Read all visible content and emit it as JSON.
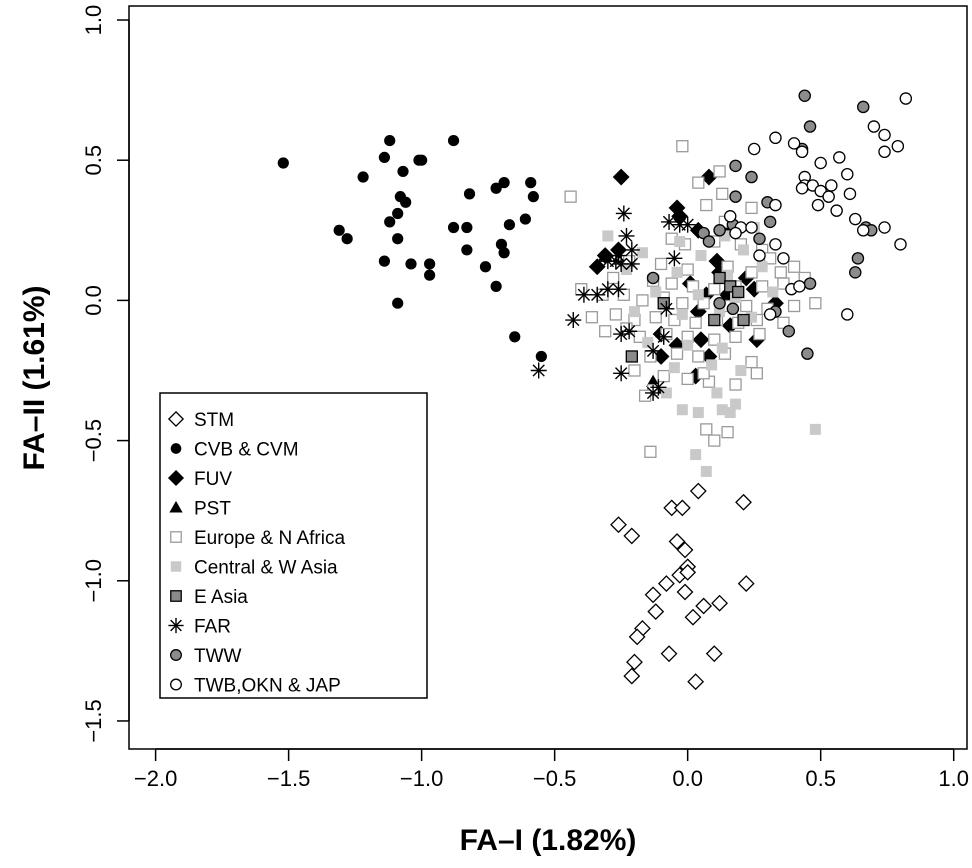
{
  "chart_data": {
    "type": "scatter",
    "xlabel": "FA–I (1.82%)",
    "ylabel": "FA–II (1.61%)",
    "xlim": [
      -2.1,
      1.05
    ],
    "ylim": [
      -1.6,
      1.05
    ],
    "xticks": [
      -2.0,
      -1.5,
      -1.0,
      -0.5,
      0.0,
      0.5,
      1.0
    ],
    "xtick_labels": [
      "−2.0",
      "−1.5",
      "−1.0",
      "−0.5",
      "0.0",
      "0.5",
      "1.0"
    ],
    "yticks": [
      -1.5,
      -1.0,
      -0.5,
      0.0,
      0.5,
      1.0
    ],
    "ytick_labels": [
      "−1.5",
      "−1.0",
      "−0.5",
      "0.0",
      "0.5",
      "1.0"
    ],
    "grid": false,
    "legend_position": "bottom-left",
    "series": [
      {
        "name": "STM",
        "marker": "diamond-open",
        "points": [
          [
            -0.26,
            -0.8
          ],
          [
            -0.21,
            -0.84
          ],
          [
            -0.06,
            -0.74
          ],
          [
            0.04,
            -0.68
          ],
          [
            -0.02,
            -0.74
          ],
          [
            0.21,
            -0.72
          ],
          [
            -0.04,
            -0.86
          ],
          [
            -0.01,
            -0.89
          ],
          [
            0.0,
            -0.95
          ],
          [
            -0.03,
            -0.98
          ],
          [
            0.0,
            -0.97
          ],
          [
            -0.08,
            -1.01
          ],
          [
            0.06,
            -1.09
          ],
          [
            0.12,
            -1.08
          ],
          [
            0.22,
            -1.01
          ],
          [
            -0.13,
            -1.05
          ],
          [
            -0.12,
            -1.11
          ],
          [
            -0.01,
            -1.04
          ],
          [
            0.02,
            -1.13
          ],
          [
            -0.17,
            -1.17
          ],
          [
            -0.19,
            -1.2
          ],
          [
            -0.07,
            -1.26
          ],
          [
            0.1,
            -1.26
          ],
          [
            -0.2,
            -1.29
          ],
          [
            -0.21,
            -1.34
          ],
          [
            0.03,
            -1.36
          ]
        ]
      },
      {
        "name": "CVB & CVM",
        "marker": "circle-filled",
        "points": [
          [
            -1.52,
            0.49
          ],
          [
            -1.12,
            0.57
          ],
          [
            -1.14,
            0.51
          ],
          [
            -1.01,
            0.5
          ],
          [
            -1.0,
            0.5
          ],
          [
            -0.88,
            0.57
          ],
          [
            -1.07,
            0.46
          ],
          [
            -1.22,
            0.44
          ],
          [
            -1.08,
            0.37
          ],
          [
            -1.06,
            0.35
          ],
          [
            -1.09,
            0.31
          ],
          [
            -1.12,
            0.28
          ],
          [
            -0.82,
            0.38
          ],
          [
            -0.72,
            0.4
          ],
          [
            -0.69,
            0.42
          ],
          [
            -0.59,
            0.42
          ],
          [
            -0.58,
            0.37
          ],
          [
            -0.61,
            0.29
          ],
          [
            -0.67,
            0.27
          ],
          [
            -1.31,
            0.25
          ],
          [
            -1.28,
            0.22
          ],
          [
            -1.09,
            0.22
          ],
          [
            -0.88,
            0.26
          ],
          [
            -0.83,
            0.26
          ],
          [
            -0.7,
            0.2
          ],
          [
            -0.69,
            0.17
          ],
          [
            -0.83,
            0.18
          ],
          [
            -1.14,
            0.14
          ],
          [
            -1.04,
            0.13
          ],
          [
            -0.97,
            0.13
          ],
          [
            -0.76,
            0.12
          ],
          [
            -0.97,
            0.09
          ],
          [
            -0.72,
            0.05
          ],
          [
            -1.09,
            -0.01
          ],
          [
            -0.65,
            -0.13
          ],
          [
            -0.55,
            -0.2
          ]
        ]
      },
      {
        "name": "FUV",
        "marker": "diamond-filled",
        "points": [
          [
            -0.25,
            0.44
          ],
          [
            0.08,
            0.44
          ],
          [
            -0.04,
            0.33
          ],
          [
            -0.03,
            0.3
          ],
          [
            0.04,
            0.25
          ],
          [
            0.13,
            0.25
          ],
          [
            -0.26,
            0.18
          ],
          [
            -0.31,
            0.16
          ],
          [
            -0.34,
            0.12
          ],
          [
            0.11,
            0.14
          ],
          [
            0.01,
            0.06
          ],
          [
            0.07,
            0.02
          ],
          [
            0.15,
            0.02
          ],
          [
            0.25,
            0.04
          ],
          [
            0.33,
            -0.01
          ],
          [
            0.04,
            -0.04
          ],
          [
            -0.1,
            -0.12
          ],
          [
            -0.04,
            -0.16
          ],
          [
            0.05,
            -0.14
          ],
          [
            0.16,
            -0.09
          ],
          [
            0.26,
            -0.14
          ],
          [
            -0.1,
            -0.2
          ],
          [
            0.08,
            -0.2
          ],
          [
            0.03,
            -0.27
          ],
          [
            0.22,
            0.08
          ],
          [
            0.12,
            0.1
          ]
        ]
      },
      {
        "name": "PST",
        "marker": "triangle-filled",
        "points": [
          [
            -0.31,
            0.16
          ],
          [
            -0.13,
            -0.29
          ],
          [
            -0.12,
            -0.31
          ]
        ]
      },
      {
        "name": "Europe & N Africa",
        "marker": "square-open",
        "points": [
          [
            -0.02,
            0.55
          ],
          [
            -0.44,
            0.37
          ],
          [
            0.12,
            0.46
          ],
          [
            0.04,
            0.42
          ],
          [
            0.13,
            0.38
          ],
          [
            0.07,
            0.34
          ],
          [
            0.24,
            0.33
          ],
          [
            0.14,
            0.28
          ],
          [
            -0.06,
            0.22
          ],
          [
            -0.01,
            0.2
          ],
          [
            0.1,
            0.21
          ],
          [
            0.2,
            0.2
          ],
          [
            0.28,
            0.18
          ],
          [
            -0.22,
            0.14
          ],
          [
            -0.1,
            0.13
          ],
          [
            0.0,
            0.11
          ],
          [
            0.15,
            0.12
          ],
          [
            0.24,
            0.1
          ],
          [
            0.35,
            0.1
          ],
          [
            0.4,
            0.12
          ],
          [
            -0.28,
            0.08
          ],
          [
            -0.13,
            0.07
          ],
          [
            -0.06,
            0.06
          ],
          [
            0.02,
            0.05
          ],
          [
            0.1,
            0.04
          ],
          [
            0.18,
            0.05
          ],
          [
            0.28,
            0.05
          ],
          [
            0.36,
            0.06
          ],
          [
            0.44,
            0.08
          ],
          [
            -0.4,
            0.04
          ],
          [
            -0.32,
            0.02
          ],
          [
            -0.24,
            0.02
          ],
          [
            -0.17,
            0.0
          ],
          [
            -0.09,
            0.01
          ],
          [
            -0.02,
            -0.01
          ],
          [
            0.06,
            -0.01
          ],
          [
            0.14,
            -0.02
          ],
          [
            0.22,
            -0.02
          ],
          [
            0.3,
            -0.03
          ],
          [
            0.4,
            -0.02
          ],
          [
            0.48,
            -0.01
          ],
          [
            -0.36,
            -0.06
          ],
          [
            -0.27,
            -0.05
          ],
          [
            -0.2,
            -0.07
          ],
          [
            -0.12,
            -0.06
          ],
          [
            -0.05,
            -0.07
          ],
          [
            0.03,
            -0.08
          ],
          [
            0.11,
            -0.07
          ],
          [
            0.19,
            -0.08
          ],
          [
            0.26,
            -0.07
          ],
          [
            0.36,
            -0.08
          ],
          [
            -0.31,
            -0.11
          ],
          [
            -0.18,
            -0.13
          ],
          [
            -0.08,
            -0.12
          ],
          [
            0.0,
            -0.13
          ],
          [
            0.1,
            -0.14
          ],
          [
            0.18,
            -0.13
          ],
          [
            0.27,
            -0.12
          ],
          [
            -0.14,
            -0.2
          ],
          [
            -0.04,
            -0.19
          ],
          [
            0.04,
            -0.2
          ],
          [
            0.14,
            -0.19
          ],
          [
            0.24,
            -0.22
          ],
          [
            -0.2,
            -0.25
          ],
          [
            -0.09,
            -0.27
          ],
          [
            0.0,
            -0.28
          ],
          [
            0.08,
            -0.29
          ],
          [
            0.18,
            -0.3
          ],
          [
            0.26,
            -0.26
          ],
          [
            -0.13,
            -0.32
          ],
          [
            -0.16,
            -0.34
          ],
          [
            0.07,
            -0.46
          ],
          [
            0.1,
            -0.5
          ],
          [
            0.15,
            -0.47
          ],
          [
            -0.14,
            -0.54
          ],
          [
            0.06,
            -0.26
          ],
          [
            -0.23,
            -0.1
          ],
          [
            0.31,
            0.15
          ]
        ]
      },
      {
        "name": "Central & W Asia",
        "marker": "square-filled",
        "points": [
          [
            -0.3,
            0.23
          ],
          [
            -0.03,
            0.21
          ],
          [
            0.14,
            0.23
          ],
          [
            0.25,
            0.26
          ],
          [
            -0.17,
            0.17
          ],
          [
            0.05,
            0.16
          ],
          [
            0.21,
            0.18
          ],
          [
            -0.23,
            0.11
          ],
          [
            -0.04,
            0.1
          ],
          [
            0.15,
            0.09
          ],
          [
            0.28,
            0.12
          ],
          [
            -0.12,
            0.03
          ],
          [
            0.04,
            0.02
          ],
          [
            0.18,
            0.01
          ],
          [
            0.32,
            0.03
          ],
          [
            -0.2,
            -0.04
          ],
          [
            -0.02,
            -0.05
          ],
          [
            0.12,
            -0.04
          ],
          [
            0.24,
            -0.06
          ],
          [
            -0.15,
            -0.15
          ],
          [
            0.0,
            -0.16
          ],
          [
            0.13,
            -0.17
          ],
          [
            -0.05,
            -0.24
          ],
          [
            0.09,
            -0.23
          ],
          [
            0.2,
            -0.25
          ],
          [
            -0.02,
            -0.39
          ],
          [
            0.04,
            -0.4
          ],
          [
            0.13,
            -0.39
          ],
          [
            0.16,
            -0.4
          ],
          [
            0.18,
            -0.37
          ],
          [
            0.03,
            -0.55
          ],
          [
            0.07,
            -0.61
          ],
          [
            0.48,
            -0.46
          ],
          [
            -0.08,
            -0.33
          ],
          [
            0.11,
            -0.33
          ]
        ]
      },
      {
        "name": "E Asia",
        "marker": "square-gray",
        "points": [
          [
            -0.21,
            -0.2
          ],
          [
            -0.09,
            -0.01
          ],
          [
            0.1,
            -0.07
          ],
          [
            0.12,
            0.08
          ],
          [
            0.16,
            0.05
          ],
          [
            0.19,
            0.03
          ],
          [
            0.21,
            -0.07
          ]
        ]
      },
      {
        "name": "FAR",
        "marker": "asterisk",
        "points": [
          [
            -0.24,
            0.31
          ],
          [
            -0.23,
            0.23
          ],
          [
            -0.21,
            0.18
          ],
          [
            -0.26,
            0.16
          ],
          [
            -0.07,
            0.28
          ],
          [
            -0.03,
            0.27
          ],
          [
            0.0,
            0.27
          ],
          [
            -0.3,
            0.14
          ],
          [
            -0.27,
            0.14
          ],
          [
            -0.25,
            0.13
          ],
          [
            -0.21,
            0.13
          ],
          [
            -0.05,
            0.15
          ],
          [
            -0.39,
            0.02
          ],
          [
            -0.34,
            0.02
          ],
          [
            -0.3,
            0.04
          ],
          [
            -0.26,
            0.04
          ],
          [
            -0.43,
            -0.07
          ],
          [
            -0.25,
            -0.12
          ],
          [
            -0.22,
            -0.11
          ],
          [
            -0.13,
            -0.18
          ],
          [
            -0.09,
            -0.13
          ],
          [
            -0.08,
            -0.03
          ],
          [
            -0.25,
            -0.26
          ],
          [
            -0.56,
            -0.25
          ],
          [
            -0.11,
            -0.31
          ],
          [
            -0.13,
            -0.33
          ]
        ]
      },
      {
        "name": "TWW",
        "marker": "circle-gray",
        "points": [
          [
            0.44,
            0.73
          ],
          [
            0.46,
            0.62
          ],
          [
            0.66,
            0.69
          ],
          [
            0.18,
            0.48
          ],
          [
            0.43,
            0.54
          ],
          [
            0.24,
            0.44
          ],
          [
            0.18,
            0.37
          ],
          [
            0.3,
            0.35
          ],
          [
            0.31,
            0.28
          ],
          [
            0.06,
            0.24
          ],
          [
            0.08,
            0.21
          ],
          [
            0.12,
            0.25
          ],
          [
            0.17,
            0.27
          ],
          [
            0.27,
            0.22
          ],
          [
            0.67,
            0.26
          ],
          [
            0.69,
            0.25
          ],
          [
            0.64,
            0.15
          ],
          [
            0.63,
            0.1
          ],
          [
            -0.13,
            0.08
          ],
          [
            0.12,
            -0.01
          ],
          [
            0.17,
            -0.03
          ],
          [
            0.33,
            -0.04
          ],
          [
            0.38,
            -0.11
          ],
          [
            0.45,
            -0.19
          ],
          [
            0.46,
            0.06
          ]
        ]
      },
      {
        "name": "TWB,OKN & JAP",
        "marker": "circle-open",
        "points": [
          [
            0.82,
            0.72
          ],
          [
            0.33,
            0.58
          ],
          [
            0.4,
            0.56
          ],
          [
            0.43,
            0.53
          ],
          [
            0.57,
            0.51
          ],
          [
            0.74,
            0.59
          ],
          [
            0.79,
            0.55
          ],
          [
            0.74,
            0.53
          ],
          [
            0.7,
            0.62
          ],
          [
            0.25,
            0.54
          ],
          [
            0.5,
            0.49
          ],
          [
            0.6,
            0.45
          ],
          [
            0.44,
            0.44
          ],
          [
            0.44,
            0.41
          ],
          [
            0.47,
            0.41
          ],
          [
            0.54,
            0.41
          ],
          [
            0.43,
            0.4
          ],
          [
            0.5,
            0.39
          ],
          [
            0.53,
            0.37
          ],
          [
            0.61,
            0.38
          ],
          [
            0.49,
            0.34
          ],
          [
            0.56,
            0.32
          ],
          [
            0.33,
            0.34
          ],
          [
            0.63,
            0.29
          ],
          [
            0.16,
            0.3
          ],
          [
            0.66,
            0.25
          ],
          [
            0.74,
            0.26
          ],
          [
            0.8,
            0.2
          ],
          [
            0.33,
            0.2
          ],
          [
            0.27,
            0.16
          ],
          [
            0.36,
            0.15
          ],
          [
            0.2,
            0.26
          ],
          [
            0.24,
            0.26
          ],
          [
            0.18,
            0.24
          ],
          [
            0.39,
            0.04
          ],
          [
            0.42,
            0.05
          ],
          [
            0.6,
            -0.05
          ],
          [
            0.31,
            -0.05
          ]
        ]
      }
    ]
  }
}
